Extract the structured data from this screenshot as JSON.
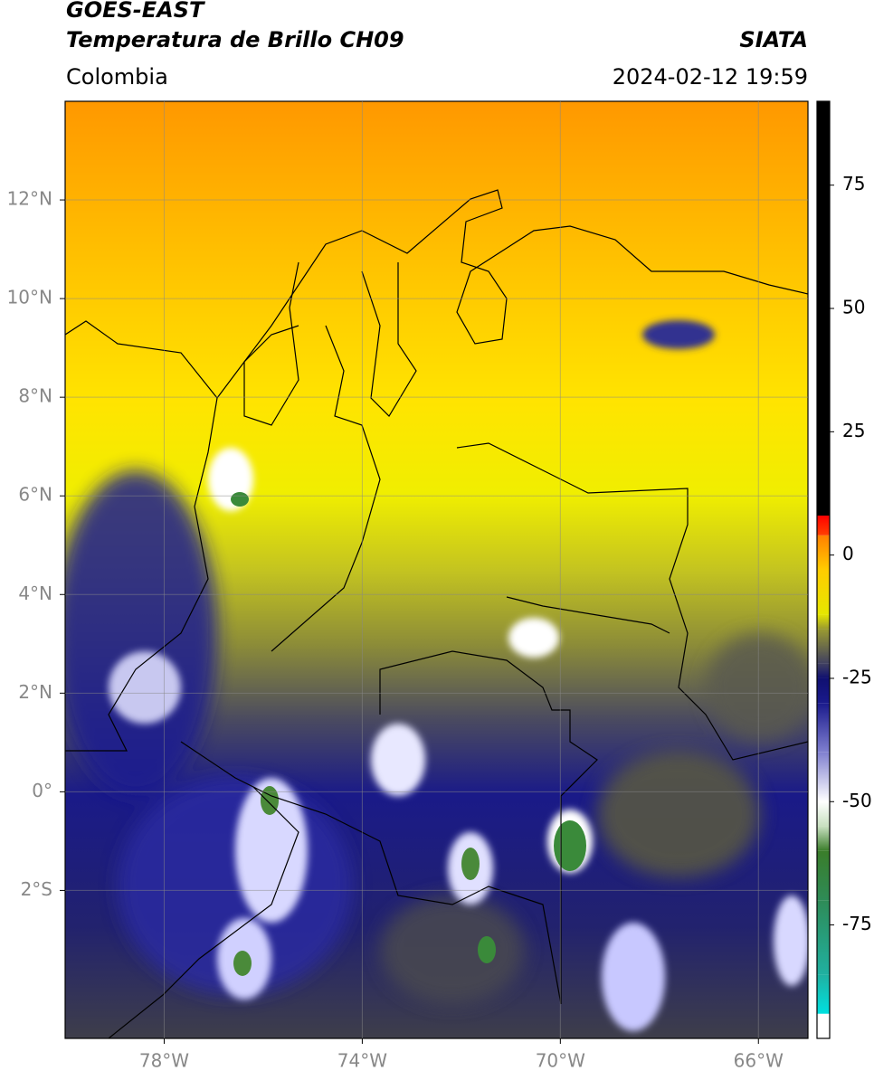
{
  "map": {
    "title": "GOES-EAST",
    "subtitle": "Temperatura de Brillo CH09",
    "source": "SIATA",
    "region": "Colombia",
    "datetime": "2024-02-12 19:59",
    "xlim": [
      -80,
      -65
    ],
    "ylim": [
      -5,
      14
    ],
    "xticks": [
      {
        "value": -78,
        "label": "78°W"
      },
      {
        "value": -74,
        "label": "74°W"
      },
      {
        "value": -70,
        "label": "70°W"
      },
      {
        "value": -66,
        "label": "66°W"
      }
    ],
    "yticks": [
      {
        "value": 12,
        "label": "12°N"
      },
      {
        "value": 10,
        "label": "10°N"
      },
      {
        "value": 8,
        "label": "8°N"
      },
      {
        "value": 6,
        "label": "6°N"
      },
      {
        "value": 4,
        "label": "4°N"
      },
      {
        "value": 2,
        "label": "2°N"
      },
      {
        "value": 0,
        "label": "0°"
      },
      {
        "value": -2,
        "label": "2°S"
      }
    ],
    "grid": true,
    "colorbar": {
      "lim": [
        -98,
        92
      ],
      "ticks": [
        75,
        50,
        25,
        0,
        -25,
        -50,
        -75
      ],
      "stops": [
        {
          "value": -98,
          "color": "#ffffff"
        },
        {
          "value": -93,
          "color": "#ffffff"
        },
        {
          "value": -93,
          "color": "#00e0e0"
        },
        {
          "value": -85,
          "color": "#20b0a0"
        },
        {
          "value": -70,
          "color": "#2e8b57"
        },
        {
          "value": -60,
          "color": "#3a7d2a"
        },
        {
          "value": -55,
          "color": "#c8e0c0"
        },
        {
          "value": -50,
          "color": "#ffffff"
        },
        {
          "value": -40,
          "color": "#8080d0"
        },
        {
          "value": -30,
          "color": "#1a1a8c"
        },
        {
          "value": -25,
          "color": "#101070"
        },
        {
          "value": -22,
          "color": "#404060"
        },
        {
          "value": -15,
          "color": "#9a9a30"
        },
        {
          "value": -12,
          "color": "#e6e600"
        },
        {
          "value": -3,
          "color": "#ffcc00"
        },
        {
          "value": 4,
          "color": "#ff8000"
        },
        {
          "value": 4,
          "color": "#ff4000"
        },
        {
          "value": 8,
          "color": "#ff0000"
        },
        {
          "value": 8,
          "color": "#000000"
        },
        {
          "value": 92,
          "color": "#000000"
        }
      ]
    }
  }
}
